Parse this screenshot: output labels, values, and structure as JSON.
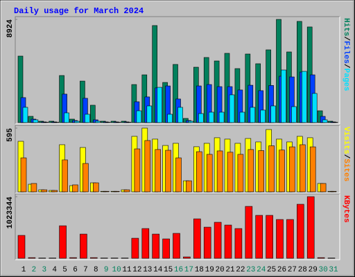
{
  "chart_data": [
    {
      "type": "bar",
      "title": "Daily usage for March 2024",
      "ylim": [
        0,
        8924
      ],
      "yticks": [
        8924
      ],
      "legend_separator": "/",
      "series": [
        {
          "name": "Hits",
          "color": "#00805c",
          "values": [
            5750,
            540,
            120,
            120,
            4070,
            300,
            3590,
            1500,
            120,
            120,
            120,
            3290,
            4130,
            8390,
            3470,
            5030,
            360,
            4790,
            5630,
            5330,
            5990,
            4670,
            5930,
            5090,
            6290,
            8924,
            6110,
            8750,
            8270,
            1020,
            120
          ]
        },
        {
          "name": "Files",
          "color": "#0040ff",
          "values": [
            2160,
            300,
            60,
            60,
            2460,
            180,
            2100,
            240,
            60,
            60,
            60,
            1800,
            2220,
            3000,
            3170,
            2040,
            180,
            3170,
            3290,
            3110,
            3110,
            2820,
            3230,
            2760,
            3210,
            4010,
            3950,
            4370,
            4130,
            540,
            60
          ]
        },
        {
          "name": "Pages",
          "color": "#00e0ff",
          "values": [
            1320,
            240,
            30,
            30,
            840,
            120,
            720,
            120,
            30,
            30,
            30,
            1020,
            1440,
            3050,
            720,
            1320,
            120,
            780,
            900,
            900,
            2400,
            900,
            1320,
            1080,
            1440,
            4550,
            1380,
            4430,
            2520,
            240,
            30
          ]
        }
      ]
    },
    {
      "type": "bar",
      "ylim": [
        0,
        595
      ],
      "yticks": [
        595
      ],
      "legend_separator": "/",
      "series": [
        {
          "name": "Visits",
          "color": "#ffff00",
          "values": [
            472,
            71,
            19,
            13,
            440,
            58,
            414,
            84,
            5,
            5,
            19,
            518,
            595,
            492,
            433,
            453,
            103,
            421,
            453,
            505,
            492,
            453,
            498,
            466,
            582,
            492,
            466,
            518,
            505,
            78,
            5
          ]
        },
        {
          "name": "Sites",
          "color": "#ff8000",
          "values": [
            317,
            78,
            19,
            13,
            298,
            65,
            265,
            84,
            5,
            5,
            19,
            401,
            479,
            395,
            388,
            317,
            103,
            375,
            350,
            382,
            370,
            350,
            395,
            385,
            430,
            390,
            420,
            440,
            420,
            78,
            5
          ]
        }
      ]
    },
    {
      "type": "bar",
      "ylim": [
        0,
        1023344
      ],
      "yticks": [
        1023344
      ],
      "categories": [
        "1",
        "2",
        "3",
        "4",
        "5",
        "6",
        "7",
        "8",
        "9",
        "10",
        "11",
        "12",
        "13",
        "14",
        "15",
        "16",
        "17",
        "18",
        "19",
        "20",
        "21",
        "22",
        "23",
        "24",
        "25",
        "26",
        "27",
        "28",
        "29",
        "30",
        "31"
      ],
      "category_colors": [
        "#000000",
        "#00805c",
        "#00805c",
        "#000000",
        "#000000",
        "#000000",
        "#000000",
        "#000000",
        "#00805c",
        "#00805c",
        "#000000",
        "#000000",
        "#000000",
        "#000000",
        "#000000",
        "#00805c",
        "#00805c",
        "#000000",
        "#000000",
        "#000000",
        "#000000",
        "#000000",
        "#00805c",
        "#00805c",
        "#000000",
        "#000000",
        "#000000",
        "#000000",
        "#000000",
        "#00805c",
        "#00805c"
      ],
      "series": [
        {
          "name": "KBytes",
          "color": "#ff0000",
          "values": [
            380000,
            11000,
            5000,
            5000,
            540000,
            11000,
            402000,
            11000,
            5000,
            5000,
            5000,
            333000,
            494000,
            402000,
            322000,
            414000,
            23000,
            655000,
            517000,
            598000,
            552000,
            494000,
            862000,
            713000,
            713000,
            644000,
            644000,
            897000,
            1023344,
            11000,
            5000
          ]
        }
      ]
    }
  ]
}
